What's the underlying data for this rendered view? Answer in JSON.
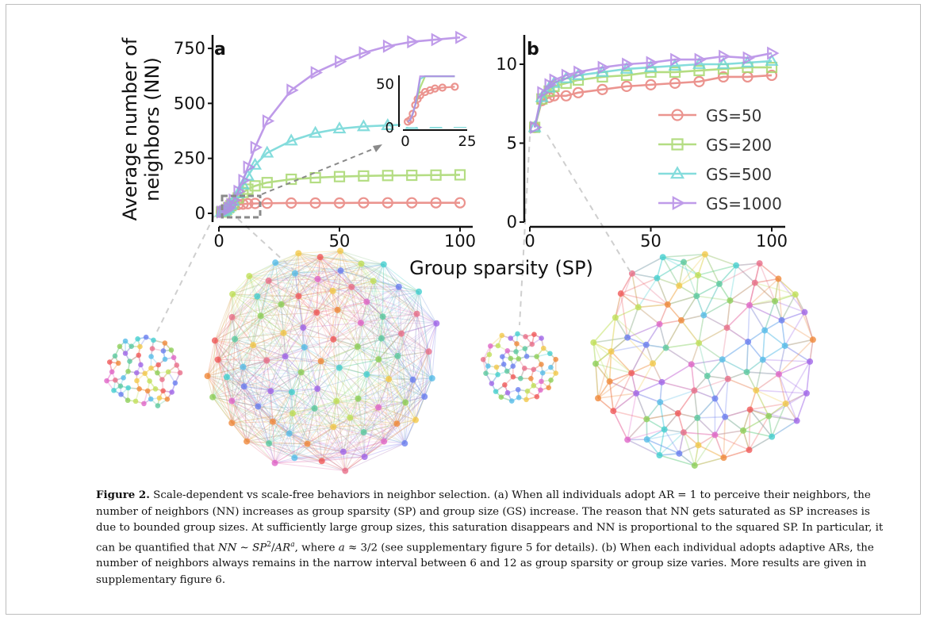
{
  "figure": {
    "x_axis_label": "Group sparsity (SP)",
    "y_axis_label_line1": "Average number of",
    "y_axis_label_line2": "neighbors (NN)",
    "x_ticks": [
      "0",
      "50",
      "100"
    ],
    "panel_a": {
      "label": "a",
      "y_ticks": [
        "0",
        "250",
        "500",
        "750"
      ],
      "inset_y_ticks": [
        "0",
        "50"
      ],
      "inset_x_ticks": [
        "0",
        "25"
      ]
    },
    "panel_b": {
      "label": "b",
      "y_ticks": [
        "0",
        "5",
        "10"
      ]
    },
    "legend": [
      "GS=50",
      "GS=200",
      "GS=500",
      "GS=1000"
    ]
  },
  "colors": {
    "gs50": "#e8827c",
    "gs200": "#a8d86e",
    "gs500": "#6fd6d6",
    "gs1000": "#b58ae6",
    "inset_box": "#8a8a8a"
  },
  "chart_data": [
    {
      "type": "line",
      "panel": "a",
      "x": [
        1,
        2,
        3,
        4,
        5,
        6,
        8,
        10,
        12,
        15,
        20,
        30,
        40,
        50,
        60,
        70,
        80,
        90,
        100
      ],
      "series": [
        {
          "name": "GS=50",
          "values": [
            6,
            8,
            15,
            25,
            32,
            36,
            40,
            42,
            44,
            45,
            46,
            47,
            47,
            47,
            48,
            48,
            48,
            48,
            48
          ]
        },
        {
          "name": "GS=200",
          "values": [
            6,
            8,
            15,
            25,
            35,
            45,
            70,
            95,
            110,
            125,
            140,
            155,
            162,
            167,
            170,
            172,
            173,
            174,
            175
          ]
        },
        {
          "name": "GS=500",
          "values": [
            6,
            8,
            15,
            25,
            38,
            55,
            90,
            130,
            170,
            220,
            275,
            330,
            365,
            385,
            395,
            400,
            405,
            408,
            410
          ]
        },
        {
          "name": "GS=1000",
          "values": [
            6,
            8,
            15,
            25,
            40,
            60,
            100,
            150,
            210,
            300,
            420,
            560,
            640,
            690,
            730,
            760,
            780,
            790,
            800
          ]
        }
      ],
      "ylim": [
        0,
        800
      ],
      "xlim": [
        0,
        100
      ],
      "inset": {
        "xlim": [
          0,
          25
        ],
        "ylim": [
          0,
          60
        ],
        "zoom_region": {
          "x": [
            0,
            15
          ],
          "y": [
            0,
            80
          ]
        }
      }
    },
    {
      "type": "line",
      "panel": "b",
      "x": [
        2,
        5,
        8,
        10,
        15,
        20,
        30,
        40,
        50,
        60,
        70,
        80,
        90,
        100
      ],
      "series": [
        {
          "name": "GS=50",
          "values": [
            6.0,
            7.7,
            7.9,
            8.0,
            8.0,
            8.2,
            8.4,
            8.6,
            8.7,
            8.8,
            8.9,
            9.2,
            9.2,
            9.3
          ]
        },
        {
          "name": "GS=200",
          "values": [
            6.0,
            7.8,
            8.3,
            8.6,
            8.8,
            9.0,
            9.2,
            9.3,
            9.5,
            9.5,
            9.6,
            9.7,
            9.8,
            9.8
          ]
        },
        {
          "name": "GS=500",
          "values": [
            6.0,
            7.9,
            8.5,
            8.8,
            9.1,
            9.3,
            9.5,
            9.7,
            9.8,
            9.9,
            10.0,
            10.0,
            10.1,
            10.2
          ]
        },
        {
          "name": "GS=1000",
          "values": [
            6.0,
            8.2,
            8.7,
            9.0,
            9.3,
            9.5,
            9.8,
            10.0,
            10.1,
            10.3,
            10.3,
            10.5,
            10.4,
            10.7
          ]
        }
      ],
      "ylim": [
        0,
        12
      ],
      "xlim": [
        0,
        100
      ]
    }
  ],
  "caption": {
    "label": "Figure 2.",
    "title": " Scale-dependent vs scale-free behaviors in neighbor selection.",
    "p1": " (a) When all individuals adopt AR = 1 to perceive their neighbors, the number of neighbors (NN) increases as group sparsity (SP) and group size (GS) increase. The reason that NN gets saturated as SP increases is due to bounded group sizes. At sufficiently large group sizes, this saturation disappears and NN is proportional to the squared SP. In particular, it can be quantified that ",
    "formula_lhs": "NN",
    "formula_sim": " ∼ ",
    "formula_sp": "SP",
    "formula_sq": "2",
    "formula_div": "/",
    "formula_ar": "AR",
    "formula_a": "a",
    "formula_where": ", where ",
    "formula_a2": "a",
    "formula_approx": " ≈ 3/2",
    "p2": " (see supplementary figure 5 for details). (b) When each individual adopts adaptive ARs, the number of neighbors always remains in the narrow interval between 6 and 12 as group sparsity or group size varies. More results are given in supplementary figure 6."
  }
}
